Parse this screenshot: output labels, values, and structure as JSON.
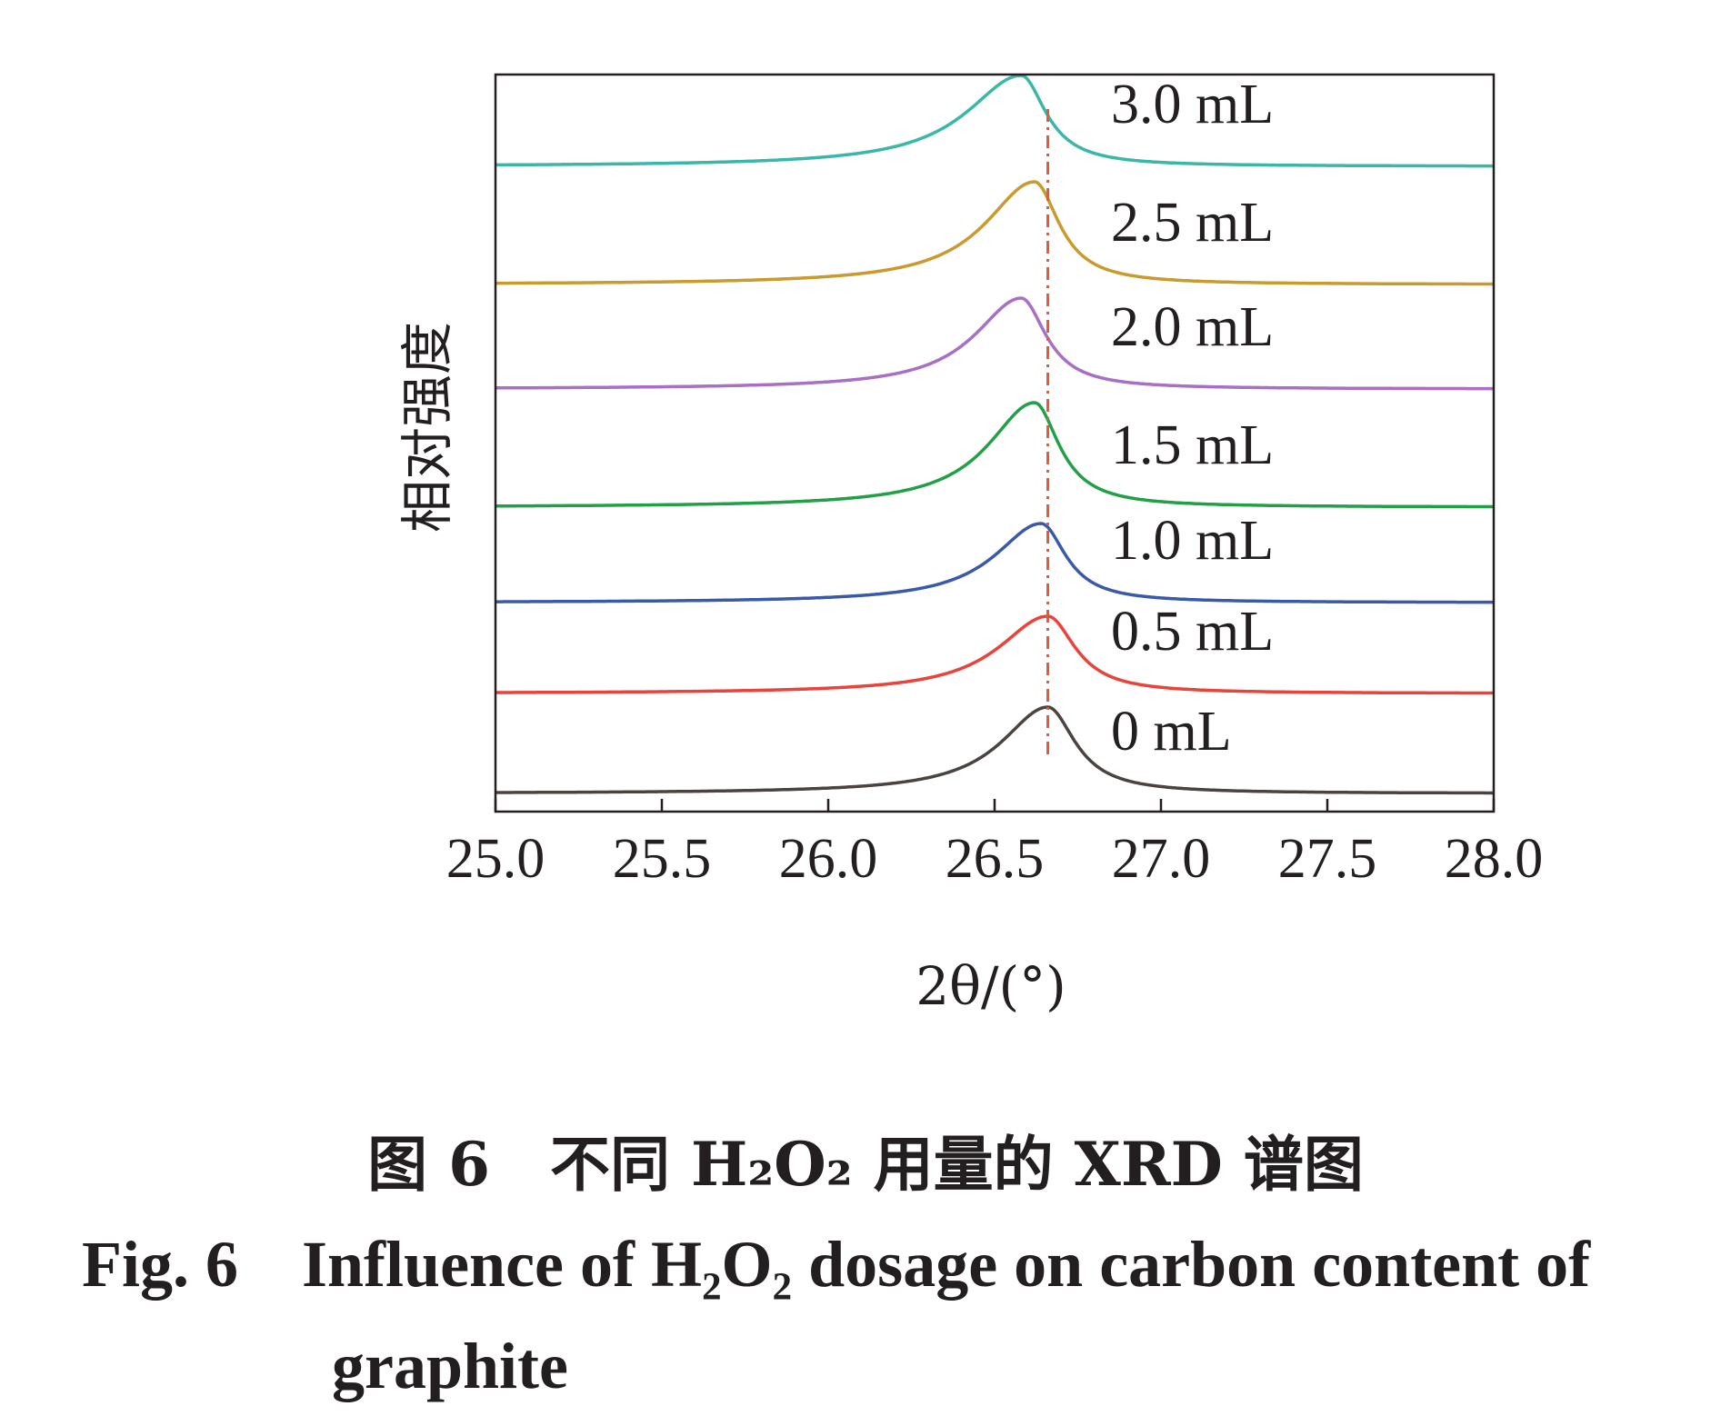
{
  "chart_data": {
    "type": "line",
    "xlabel": "2θ/(°)",
    "ylabel": "相对强度",
    "xlim": [
      25.0,
      28.0
    ],
    "x_ticks": [
      "25.0",
      "25.5",
      "26.0",
      "26.5",
      "27.0",
      "27.5",
      "28.0"
    ],
    "y_ticks": [],
    "reference_line": {
      "x": 26.66,
      "style": "dash-dot",
      "color": "#e05a3a"
    },
    "grid": false,
    "series": [
      {
        "name": "0 mL",
        "color": "#4a4340",
        "peak_x": 26.66,
        "intensity": 0.95,
        "offset": 0.0,
        "width_left": 0.17,
        "width_right": 0.1
      },
      {
        "name": "0.5 mL",
        "color": "#e9433a",
        "peak_x": 26.66,
        "intensity": 0.85,
        "offset": 1.1,
        "width_left": 0.18,
        "width_right": 0.1
      },
      {
        "name": "1.0 mL",
        "color": "#3a5aa8",
        "peak_x": 26.64,
        "intensity": 0.87,
        "offset": 2.1,
        "width_left": 0.17,
        "width_right": 0.09
      },
      {
        "name": "1.5 mL",
        "color": "#22a048",
        "peak_x": 26.62,
        "intensity": 1.15,
        "offset": 3.15,
        "width_left": 0.17,
        "width_right": 0.09
      },
      {
        "name": "2.0 mL",
        "color": "#a86fc4",
        "peak_x": 26.58,
        "intensity": 1.0,
        "offset": 4.45,
        "width_left": 0.17,
        "width_right": 0.09
      },
      {
        "name": "2.5 mL",
        "color": "#c99a2e",
        "peak_x": 26.62,
        "intensity": 1.13,
        "offset": 5.6,
        "width_left": 0.18,
        "width_right": 0.09
      },
      {
        "name": "3.0 mL",
        "color": "#3ab7a8",
        "peak_x": 26.58,
        "intensity": 1.0,
        "offset": 6.9,
        "width_left": 0.2,
        "width_right": 0.09
      }
    ]
  },
  "caption": {
    "cn": "图 6　不同 H₂O₂ 用量的 XRD 谱图",
    "en_fig": "Fig. 6",
    "en_line1": "Influence of H₂O₂ dosage on carbon content of",
    "en_line2": "graphite"
  }
}
